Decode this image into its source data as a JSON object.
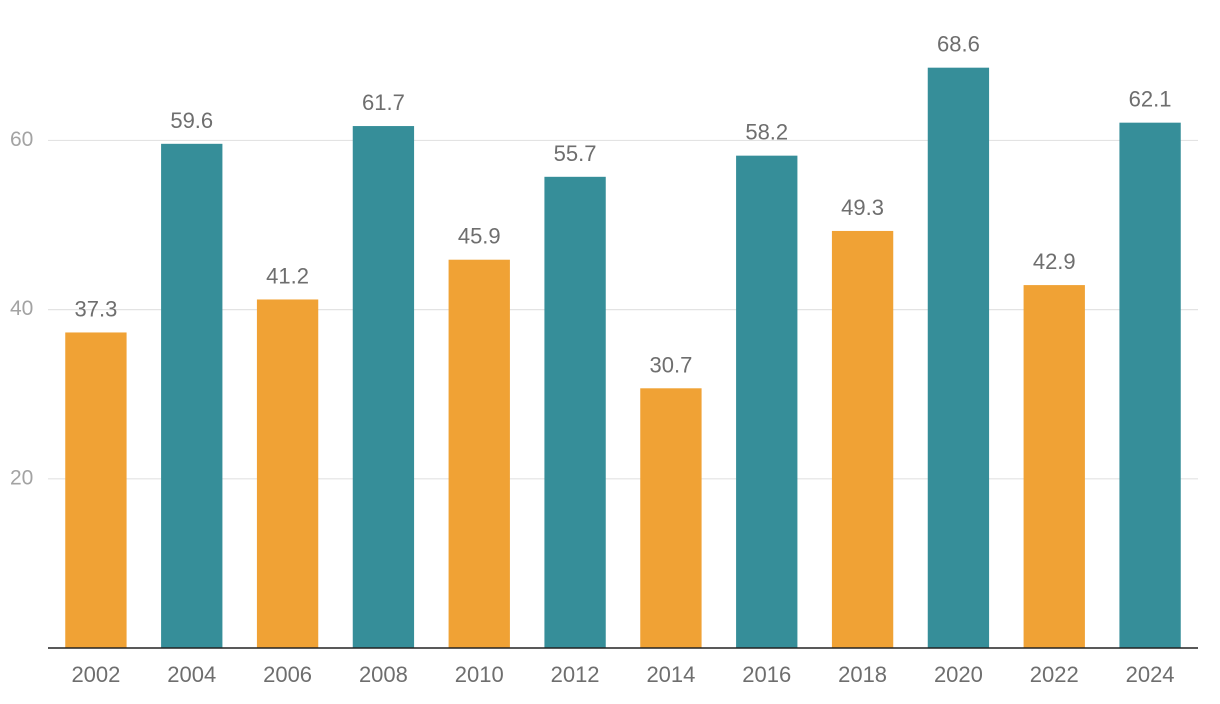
{
  "chart_data": {
    "type": "bar",
    "title": "",
    "xlabel": "",
    "ylabel": "",
    "categories": [
      "2002",
      "2004",
      "2006",
      "2008",
      "2010",
      "2012",
      "2014",
      "2016",
      "2018",
      "2020",
      "2022",
      "2024"
    ],
    "values": [
      37.3,
      59.6,
      41.2,
      61.7,
      45.9,
      55.7,
      30.7,
      58.2,
      49.3,
      68.6,
      42.9,
      62.1
    ],
    "value_labels": [
      "37.3",
      "59.6",
      "41.2",
      "61.7",
      "45.9",
      "55.7",
      "30.7",
      "58.2",
      "49.3",
      "68.6",
      "42.9",
      "62.1"
    ],
    "bar_colors": [
      "#f0a235",
      "#368e99",
      "#f0a235",
      "#368e99",
      "#f0a235",
      "#368e99",
      "#f0a235",
      "#368e99",
      "#f0a235",
      "#368e99",
      "#f0a235",
      "#368e99"
    ],
    "ylim": [
      0,
      74
    ],
    "yticks": [
      20,
      40,
      60
    ],
    "ytick_labels": [
      "20",
      "40",
      "60"
    ],
    "grid": true,
    "legend": "none",
    "data_labels": true
  },
  "colors": {
    "odd_bar": "#f0a235",
    "even_bar": "#368e99",
    "grid": "#e3e3e3",
    "baseline": "#222222",
    "tick_text": "#a3a3a3",
    "label_text": "#6e6e6e"
  }
}
